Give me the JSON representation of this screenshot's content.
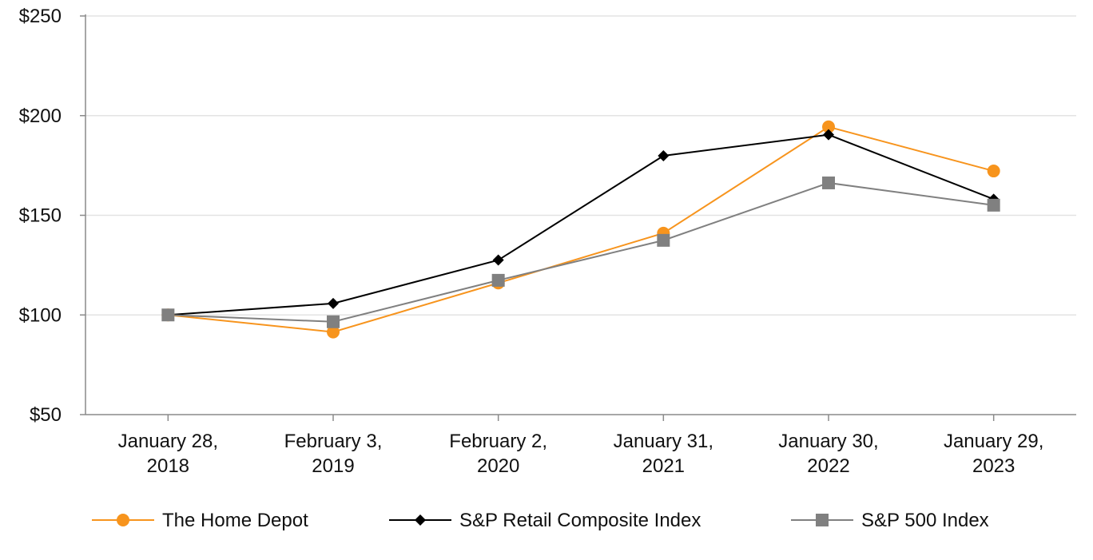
{
  "chart_data": {
    "type": "line",
    "categories": [
      [
        "January 28,",
        "2018"
      ],
      [
        "February 3,",
        "2019"
      ],
      [
        "February 2,",
        "2020"
      ],
      [
        "January 31,",
        "2021"
      ],
      [
        "January 30,",
        "2022"
      ],
      [
        "January 29,",
        "2023"
      ]
    ],
    "ylim": [
      50,
      250
    ],
    "yticks": [
      50,
      100,
      150,
      200,
      250
    ],
    "ytick_labels": [
      "$50",
      "$100",
      "$150",
      "$200",
      "$250"
    ],
    "grid": "horizontal",
    "legend_position": "bottom",
    "series": [
      {
        "name": "The Home Depot",
        "values": [
          100.0,
          91.43,
          116.04,
          141.03,
          194.38,
          172.23
        ],
        "color": "#F7941D",
        "marker": "circle"
      },
      {
        "name": "S&P Retail Composite Index",
        "values": [
          100.0,
          105.76,
          127.54,
          179.85,
          190.42,
          158.08
        ],
        "color": "#000000",
        "marker": "diamond"
      },
      {
        "name": "S&P 500 Index",
        "values": [
          100.0,
          96.59,
          117.38,
          137.43,
          166.25,
          155.07
        ],
        "color": "#808080",
        "marker": "square"
      }
    ]
  }
}
